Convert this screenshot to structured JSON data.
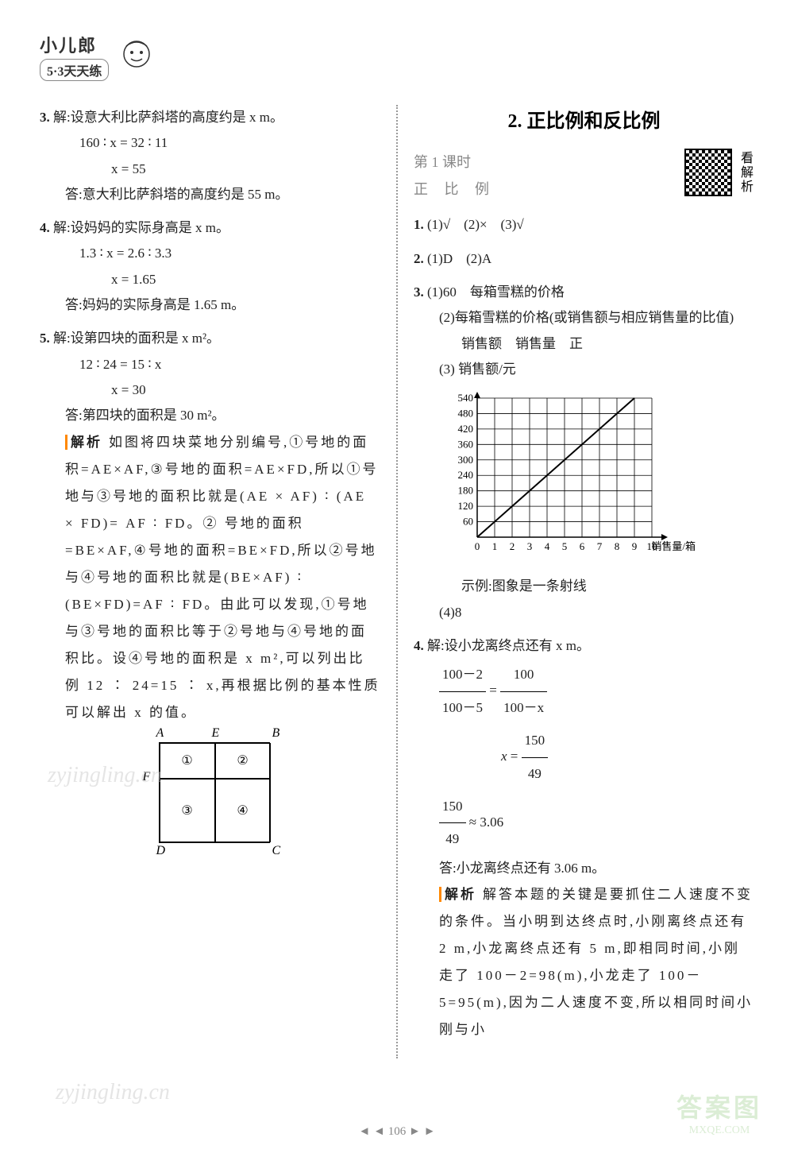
{
  "logo": {
    "title": "小儿郎",
    "subtitle": "5·3天天练"
  },
  "left": {
    "q3": {
      "num": "3.",
      "label": "解:",
      "text1": "设意大利比萨斜塔的高度约是 x m。",
      "eq1": "160 ∶ x = 32 ∶ 11",
      "eq2": "x = 55",
      "ans_label": "答:",
      "ans": "意大利比萨斜塔的高度约是 55 m。"
    },
    "q4": {
      "num": "4.",
      "label": "解:",
      "text1": "设妈妈的实际身高是 x m。",
      "eq1": "1.3 ∶ x = 2.6 ∶ 3.3",
      "eq2": "x = 1.65",
      "ans_label": "答:",
      "ans": "妈妈的实际身高是 1.65 m。"
    },
    "q5": {
      "num": "5.",
      "label": "解:",
      "text1": "设第四块的面积是 x m²。",
      "eq1": "12 ∶ 24 = 15 ∶ x",
      "eq2": "x = 30",
      "ans_label": "答:",
      "ans": "第四块的面积是 30 m²。",
      "analysis_label": "解析",
      "analysis": "如图将四块菜地分别编号,①号地的面积=AE×AF,③号地的面积=AE×FD,所以①号地与③号地的面积比就是(AE × AF) ∶ (AE × FD)= AF ∶ FD。② 号地的面积=BE×AF,④号地的面积=BE×FD,所以②号地与④号地的面积比就是(BE×AF) ∶ (BE×FD)=AF ∶ FD。由此可以发现,①号地与③号地的面积比等于②号地与④号地的面积比。设④号地的面积是 x m²,可以列出比例 12 ∶ 24=15 ∶ x,再根据比例的基本性质可以解出 x 的值。"
    },
    "diagram": {
      "A": "A",
      "B": "B",
      "C": "C",
      "D": "D",
      "E": "E",
      "F": "F",
      "c1": "①",
      "c2": "②",
      "c3": "③",
      "c4": "④"
    }
  },
  "right": {
    "section_title": "2. 正比例和反比例",
    "lesson_num": "第 1 课时",
    "lesson_title": "正    比    例",
    "qr_text": "看解析",
    "q1": {
      "num": "1.",
      "text": "(1)√　(2)×　(3)√"
    },
    "q2": {
      "num": "2.",
      "text": "(1)D　(2)A"
    },
    "q3": {
      "num": "3.",
      "p1": "(1)60　每箱雪糕的价格",
      "p2": "(2)每箱雪糕的价格(或销售额与相应销售量的比值)",
      "p2b": "销售额　销售量　正",
      "p3label": "(3)",
      "chart": {
        "ylabel": "销售额/元",
        "xlabel": "销售量/箱",
        "ymax": 540,
        "ymin": 0,
        "ystep": 60,
        "yticks": [
          60,
          120,
          180,
          240,
          300,
          360,
          420,
          480,
          540
        ],
        "xmax": 10,
        "xmin": 0,
        "xticks": [
          0,
          1,
          2,
          3,
          4,
          5,
          6,
          7,
          8,
          9,
          10
        ],
        "grid_color": "#000000",
        "line_color": "#000000",
        "line_points": [
          [
            0,
            0
          ],
          [
            9,
            540
          ]
        ]
      },
      "p3b": "示例:图象是一条射线",
      "p4": "(4)8"
    },
    "q4": {
      "num": "4.",
      "label": "解:",
      "text1": "设小龙离终点还有 x m。",
      "frac1_num1": "100－2",
      "frac1_den1": "100－5",
      "frac1_num2": "100",
      "frac1_den2": "100－x",
      "eqx_num": "150",
      "eqx_den": "49",
      "approx_num": "150",
      "approx_den": "49",
      "approx_val": "≈ 3.06",
      "ans_label": "答:",
      "ans": "小龙离终点还有 3.06 m。",
      "analysis_label": "解析",
      "analysis": "解答本题的关键是要抓住二人速度不变的条件。当小明到达终点时,小刚离终点还有 2 m,小龙离终点还有 5 m,即相同时间,小刚走了 100－2=98(m),小龙走了 100－5=95(m),因为二人速度不变,所以相同时间小刚与小"
    }
  },
  "page_number": "106",
  "watermarks": {
    "w1": "zyjingling.cn",
    "w2": "zyjingling.cn",
    "logo_text1": "答案图",
    "logo_text2": "MXQE.COM"
  }
}
